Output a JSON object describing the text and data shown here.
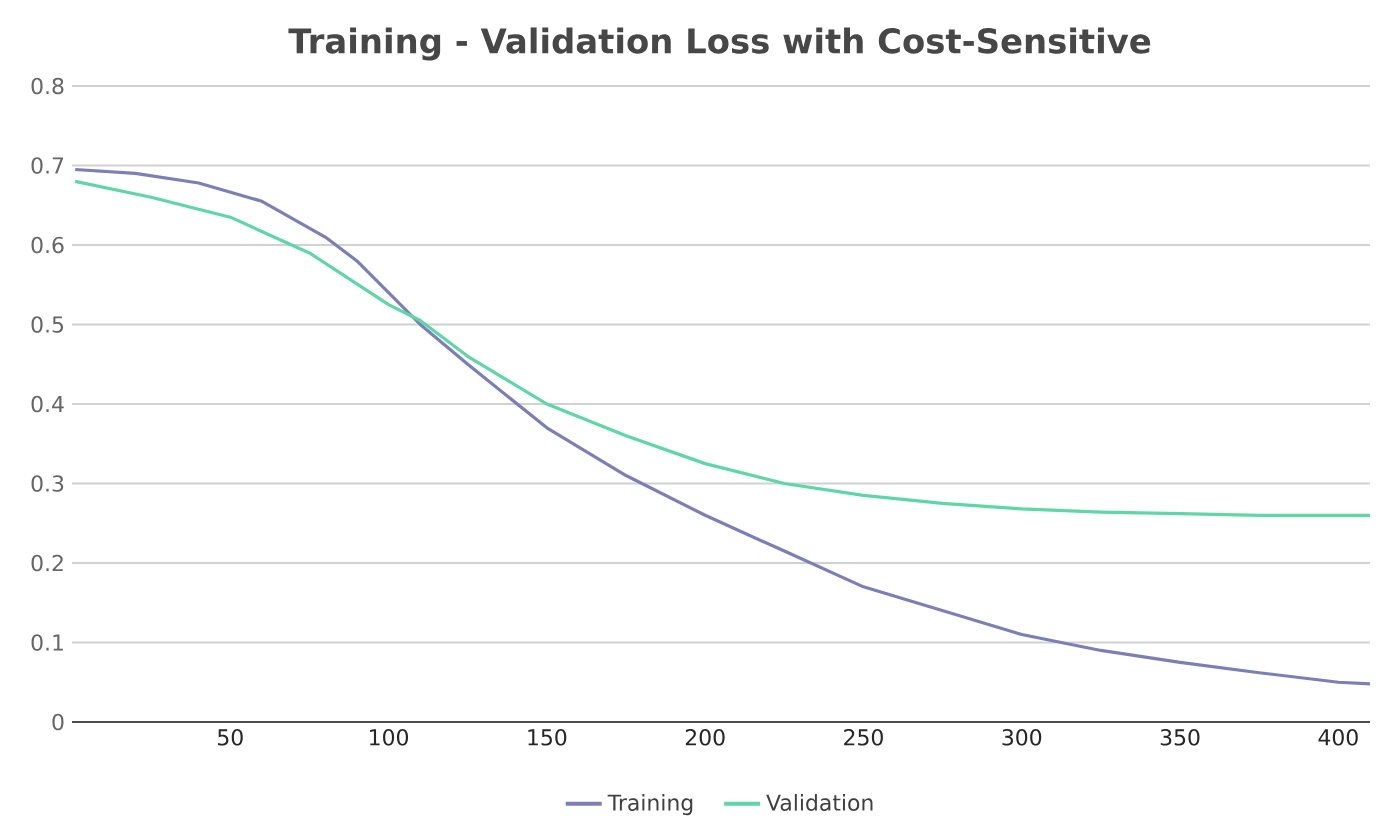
{
  "chart_data": {
    "type": "line",
    "title": "Training - Validation Loss with Cost-Sensitive",
    "xlim": [
      0,
      410
    ],
    "xticks": [
      50,
      100,
      150,
      200,
      250,
      300,
      350,
      400
    ],
    "ylim": [
      0,
      0.8
    ],
    "yticks": [
      0,
      0.1,
      0.2,
      0.3,
      0.4,
      0.5,
      0.6,
      0.7,
      0.8
    ],
    "grid": "y",
    "legend": "bottom",
    "marker": "none",
    "line_style": "solid",
    "series": [
      {
        "name": "Training",
        "color": "#7b7fb5",
        "x": [
          1,
          20,
          40,
          60,
          80,
          90,
          100,
          110,
          125,
          150,
          175,
          200,
          225,
          250,
          275,
          300,
          325,
          350,
          375,
          400,
          410
        ],
        "values": [
          0.695,
          0.69,
          0.678,
          0.655,
          0.61,
          0.58,
          0.54,
          0.5,
          0.45,
          0.37,
          0.31,
          0.26,
          0.215,
          0.17,
          0.14,
          0.11,
          0.09,
          0.075,
          0.062,
          0.05,
          0.048
        ]
      },
      {
        "name": "Validation",
        "color": "#5ed6a6",
        "x": [
          1,
          25,
          50,
          75,
          100,
          110,
          125,
          150,
          175,
          200,
          225,
          250,
          275,
          300,
          325,
          350,
          375,
          410
        ],
        "values": [
          0.68,
          0.66,
          0.635,
          0.59,
          0.525,
          0.505,
          0.46,
          0.4,
          0.36,
          0.325,
          0.3,
          0.285,
          0.275,
          0.268,
          0.264,
          0.262,
          0.26,
          0.26
        ]
      }
    ]
  }
}
